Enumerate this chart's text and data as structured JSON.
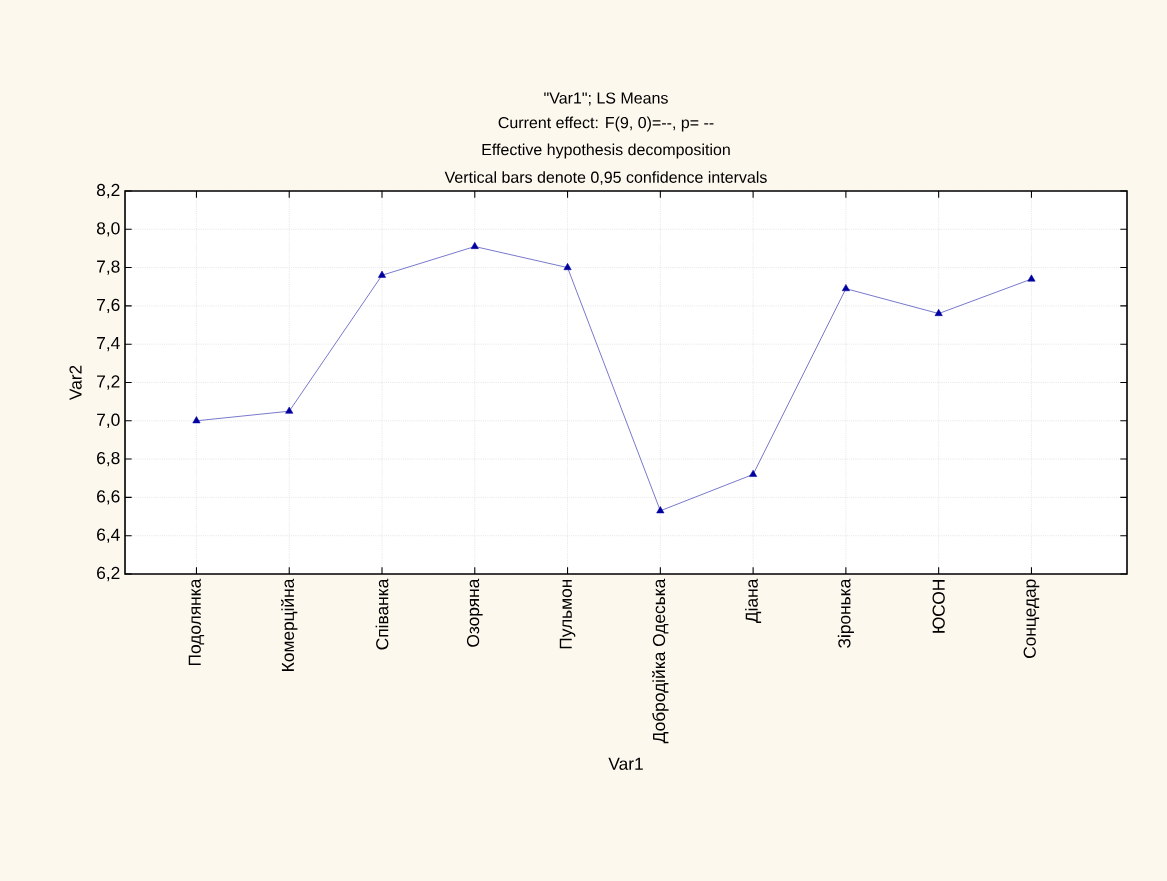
{
  "chart_data": {
    "type": "line",
    "title": "\"Var1\"; LS Means",
    "subtitle": "Current effect: F(9, 0)=--, p=  --",
    "annotations": [
      "Effective hypothesis decomposition",
      "Vertical bars denote 0,95 confidence intervals"
    ],
    "xlabel": "Var1",
    "ylabel": "Var2",
    "categories": [
      "Подолянка",
      "Комерційна",
      "Співанка",
      "Озоряна",
      "Пульмон",
      "Добродійка Одеська",
      "Діана",
      "Зіронька",
      "ЮСОН",
      "Сонцедар"
    ],
    "series": [
      {
        "color": "#0000a0",
        "values": [
          7.0,
          7.05,
          7.76,
          7.91,
          7.8,
          6.53,
          6.72,
          7.69,
          7.56,
          7.74
        ]
      }
    ],
    "ylim": [
      6.2,
      8.2
    ],
    "yticks": [
      {
        "value": 6.2,
        "label": "6,2"
      },
      {
        "value": 6.4,
        "label": "6,4"
      },
      {
        "value": 6.6,
        "label": "6,6"
      },
      {
        "value": 6.8,
        "label": "6,8"
      },
      {
        "value": 7.0,
        "label": "7,0"
      },
      {
        "value": 7.2,
        "label": "7,2"
      },
      {
        "value": 7.4,
        "label": "7,4"
      },
      {
        "value": 7.6,
        "label": "7,6"
      },
      {
        "value": 7.8,
        "label": "7,8"
      },
      {
        "value": 8.0,
        "label": "8,0"
      },
      {
        "value": 8.2,
        "label": "8,2"
      }
    ],
    "grid": true,
    "marker": "triangle",
    "line_style": "solid"
  }
}
